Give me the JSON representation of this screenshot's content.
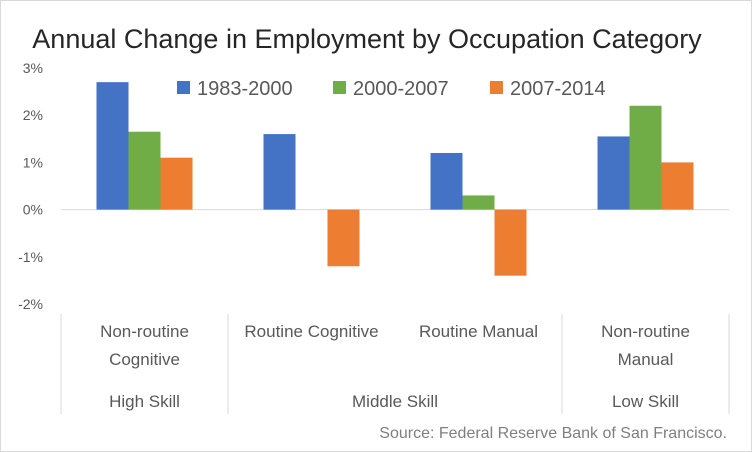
{
  "chart_data": {
    "type": "bar",
    "title": "Annual Change in Employment by Occupation Category",
    "categories": [
      [
        "Non-routine",
        "Cognitive"
      ],
      [
        "Routine Cognitive"
      ],
      [
        "Routine Manual"
      ],
      [
        "Non-routine",
        "Manual"
      ]
    ],
    "groups": [
      {
        "label": "High Skill",
        "span": [
          0,
          0
        ]
      },
      {
        "label": "Middle Skill",
        "span": [
          1,
          2
        ]
      },
      {
        "label": "Low Skill",
        "span": [
          3,
          3
        ]
      }
    ],
    "series": [
      {
        "name": "1983-2000",
        "color": "#4472c4",
        "values": [
          2.7,
          1.6,
          1.2,
          1.55
        ]
      },
      {
        "name": "2000-2007",
        "color": "#70ad47",
        "values": [
          1.65,
          0.0,
          0.3,
          2.2
        ]
      },
      {
        "name": "2007-2014",
        "color": "#ed7d31",
        "values": [
          1.1,
          -1.2,
          -1.4,
          1.0
        ]
      }
    ],
    "ylim": [
      -2,
      3
    ],
    "yticks": [
      {
        "value": 3,
        "label": "3%"
      },
      {
        "value": 2,
        "label": "2%"
      },
      {
        "value": 1,
        "label": "1%"
      },
      {
        "value": 0,
        "label": "0%"
      },
      {
        "value": -1,
        "label": "-1%"
      },
      {
        "value": -2,
        "label": "-2%"
      }
    ],
    "grid": false,
    "legend_position": "top"
  },
  "source": "Source: Federal Reserve Bank of San Francisco."
}
